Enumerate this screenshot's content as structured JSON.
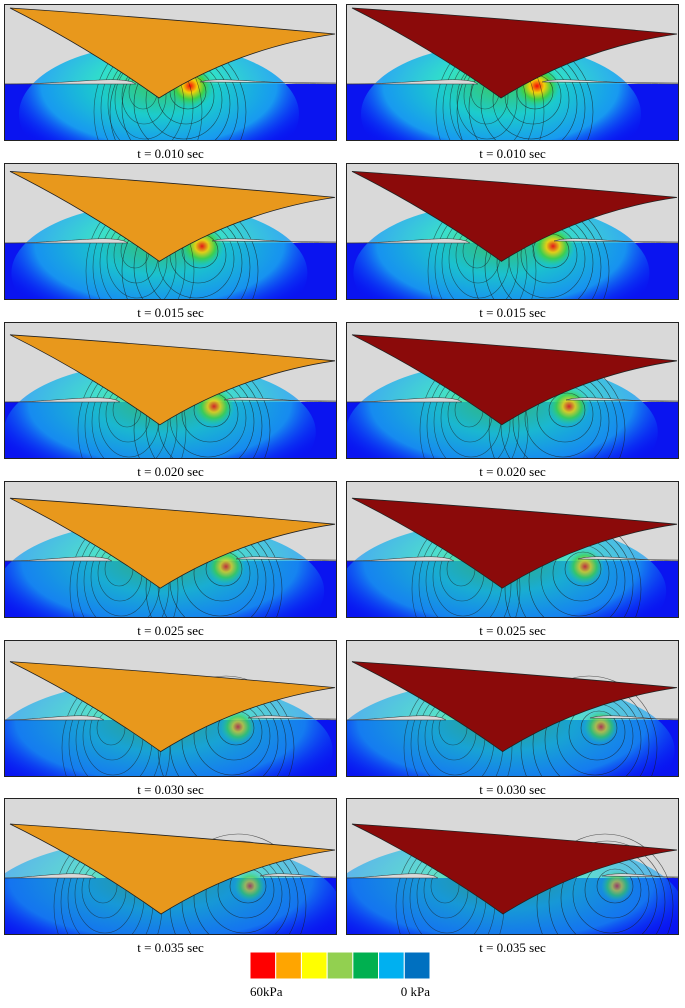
{
  "rows": [
    {
      "left": "t = 0.010 sec",
      "right": "t = 0.010 sec"
    },
    {
      "left": "t = 0.015 sec",
      "right": "t = 0.015 sec"
    },
    {
      "left": "t = 0.020 sec",
      "right": "t = 0.020 sec"
    },
    {
      "left": "t = 0.025 sec",
      "right": "t = 0.025 sec"
    },
    {
      "left": "t = 0.030 sec",
      "right": "t = 0.030 sec"
    },
    {
      "left": "t = 0.035 sec",
      "right": "t = 0.035 sec"
    }
  ],
  "wedge_colors": {
    "left": "#e8981c",
    "right": "#8b0a0a"
  },
  "legend": {
    "colors": [
      "#ff0000",
      "#ffa500",
      "#ffff00",
      "#92d050",
      "#00b050",
      "#00b0f0",
      "#0070c0"
    ],
    "max_label": "60kPa",
    "min_label": "0 kPa"
  }
}
